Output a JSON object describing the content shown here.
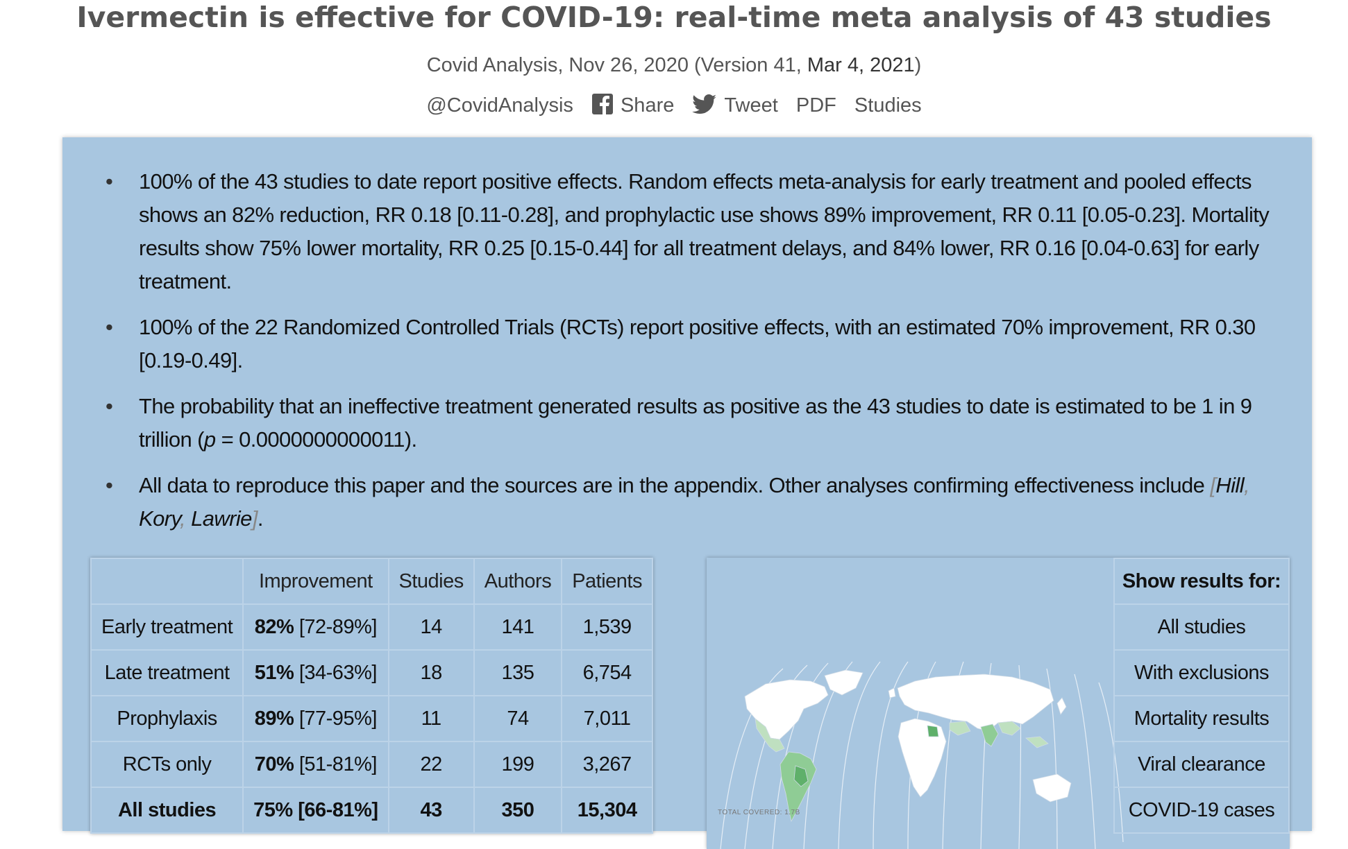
{
  "header": {
    "title": "Ivermectin is effective for COVID-19: real-time meta analysis of 43 studies",
    "byline_prefix": "Covid Analysis, Nov 26, 2020 (Version 41, ",
    "byline_date": "Mar 4, 2021",
    "byline_suffix": ")"
  },
  "links": {
    "handle": "@CovidAnalysis",
    "share": "Share",
    "tweet": "Tweet",
    "pdf": "PDF",
    "studies": "Studies",
    "share_icon": "facebook-icon",
    "tweet_icon": "twitter-icon"
  },
  "summary": {
    "b1": "100% of the 43 studies to date report positive effects. Random effects meta-analysis for early treatment and pooled effects shows an 82% reduction, RR 0.18 [0.11-0.28], and prophylactic use shows 89% improvement, RR 0.11 [0.05-0.23]. Mortality results show 75% lower mortality, RR 0.25 [0.15-0.44] for all treatment delays, and 84% lower, RR 0.16 [0.04-0.63] for early treatment.",
    "b2": "100% of the 22 Randomized Controlled Trials (RCTs) report positive effects, with an estimated 70% improvement, RR 0.30 [0.19-0.49].",
    "b3_prefix": "The probability that an ineffective treatment generated results as positive as the 43 studies to date is estimated to be 1 in 9 trillion (",
    "b3_p": "p",
    "b3_suffix": " = 0.0000000000011).",
    "b4_prefix": "All data to reproduce this paper and the sources are in the appendix. Other analyses confirming effectiveness include ",
    "b4_open": "[",
    "ref_hill": "Hill",
    "comma": ",",
    "ref_kory": "Kory",
    "ref_lawrie": "Lawrie",
    "b4_close": "]",
    "b4_end": "."
  },
  "results_table": {
    "headers": [
      "",
      "Improvement",
      "Studies",
      "Authors",
      "Patients"
    ],
    "rows": [
      {
        "label": "Early treatment",
        "pct": "82%",
        "ci": " [72-89%]",
        "studies": "14",
        "authors": "141",
        "patients": "1,539"
      },
      {
        "label": "Late treatment",
        "pct": "51%",
        "ci": " [34-63%]",
        "studies": "18",
        "authors": "135",
        "patients": "6,754"
      },
      {
        "label": "Prophylaxis",
        "pct": "89%",
        "ci": " [77-95%]",
        "studies": "11",
        "authors": "74",
        "patients": "7,011"
      },
      {
        "label": "RCTs only",
        "pct": "70%",
        "ci": " [51-81%]",
        "studies": "22",
        "authors": "199",
        "patients": "3,267"
      },
      {
        "label": "All studies",
        "pct": "75%",
        "ci": " [66-81%]",
        "studies": "43",
        "authors": "350",
        "patients": "15,304"
      }
    ]
  },
  "show_results": {
    "header": "Show results for:",
    "options": [
      "All studies",
      "With exclusions",
      "Mortality results",
      "Viral clearance",
      "COVID-19 cases"
    ]
  },
  "map": {
    "note": "TOTAL COVERED: 1.7B",
    "colors": {
      "water": "#a8c6e0",
      "land": "#ffffff",
      "light": "#bfe0c0",
      "mid": "#8fcc95",
      "dark": "#5fb06a"
    }
  }
}
